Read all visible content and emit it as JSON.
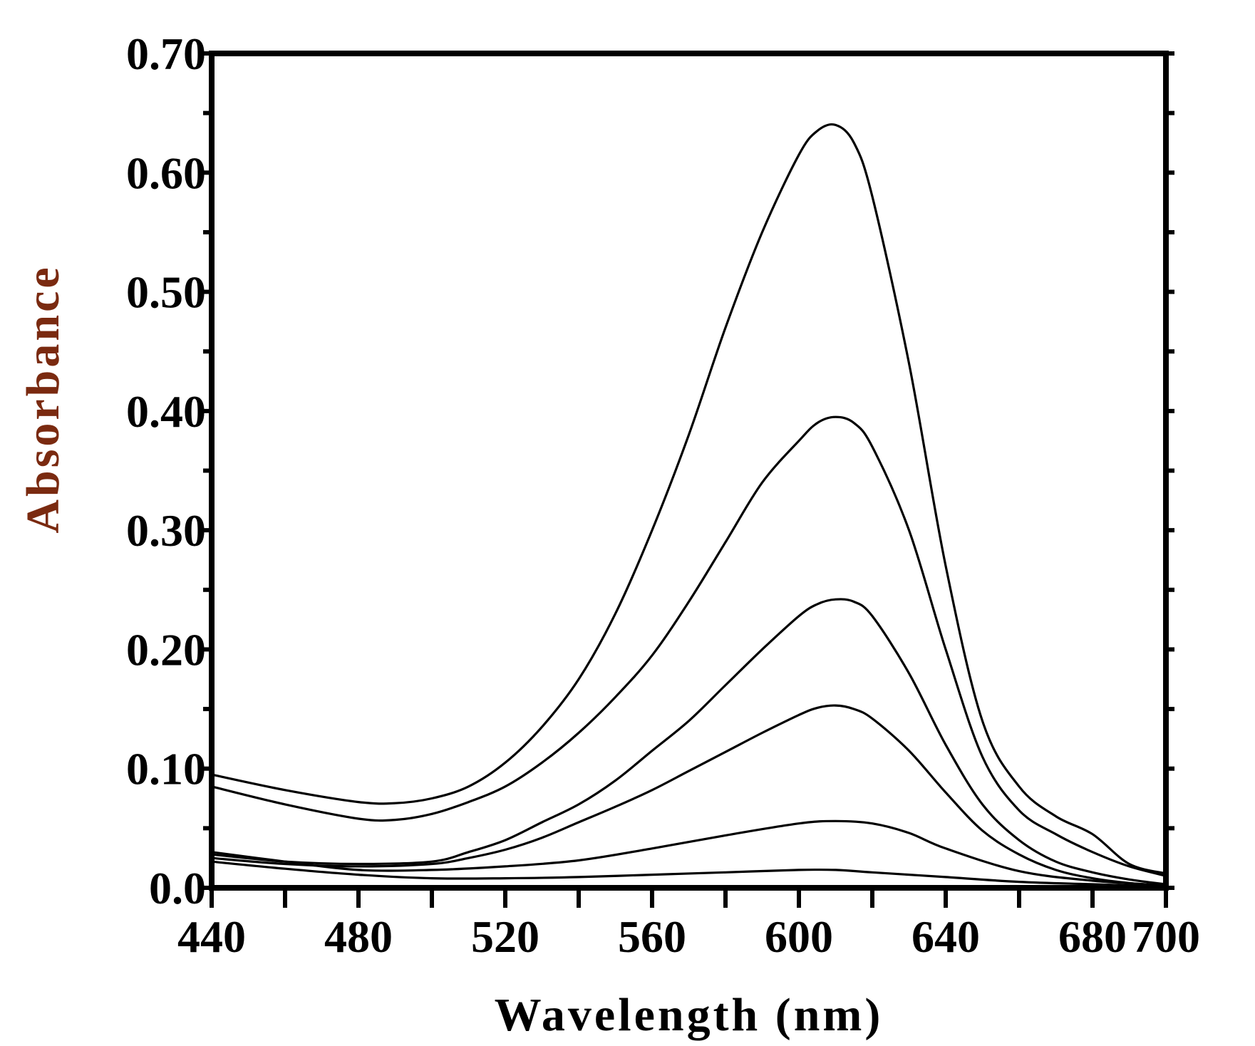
{
  "chart_data": {
    "type": "line",
    "title": "",
    "xlabel": "Wavelength (nm)",
    "ylabel": "Absorbance",
    "xlim": [
      440,
      700
    ],
    "ylim": [
      0,
      0.7
    ],
    "xticks": [
      {
        "value": 440,
        "label": "440"
      },
      {
        "value": 480,
        "label": "480"
      },
      {
        "value": 520,
        "label": "520"
      },
      {
        "value": 560,
        "label": "560"
      },
      {
        "value": 600,
        "label": "600"
      },
      {
        "value": 640,
        "label": "640"
      },
      {
        "value": 680,
        "label": "680"
      },
      {
        "value": 700,
        "label": "700"
      }
    ],
    "yticks": [
      {
        "value": 0.0,
        "label": "0.0"
      },
      {
        "value": 0.1,
        "label": "0.10"
      },
      {
        "value": 0.2,
        "label": "0.20"
      },
      {
        "value": 0.3,
        "label": "0.30"
      },
      {
        "value": 0.4,
        "label": "0.40"
      },
      {
        "value": 0.5,
        "label": "0.50"
      },
      {
        "value": 0.6,
        "label": "0.60"
      },
      {
        "value": 0.7,
        "label": "0.70"
      }
    ],
    "x_minor_step": 20,
    "y_minor_step": 0.05,
    "grid": false,
    "legend": "none",
    "colors": {
      "line": "#000000",
      "axes": "#000000",
      "ylabel": "#7a2a10",
      "xlabel": "#000000"
    },
    "series": [
      {
        "x": [
          440,
          460,
          480,
          490,
          500,
          510,
          520,
          530,
          540,
          550,
          560,
          570,
          580,
          590,
          600,
          605,
          610,
          615,
          620,
          630,
          640,
          650,
          660,
          670,
          680,
          690,
          700
        ],
        "y": [
          0.095,
          0.082,
          0.072,
          0.071,
          0.075,
          0.085,
          0.105,
          0.135,
          0.175,
          0.23,
          0.3,
          0.38,
          0.47,
          0.55,
          0.615,
          0.635,
          0.64,
          0.625,
          0.58,
          0.44,
          0.27,
          0.14,
          0.085,
          0.06,
          0.045,
          0.02,
          0.012
        ]
      },
      {
        "x": [
          440,
          460,
          480,
          490,
          500,
          510,
          520,
          530,
          540,
          550,
          560,
          570,
          580,
          590,
          600,
          605,
          610,
          615,
          620,
          630,
          640,
          650,
          660,
          670,
          680,
          690,
          700
        ],
        "y": [
          0.085,
          0.07,
          0.058,
          0.057,
          0.062,
          0.072,
          0.085,
          0.105,
          0.13,
          0.16,
          0.195,
          0.24,
          0.29,
          0.34,
          0.375,
          0.39,
          0.395,
          0.39,
          0.37,
          0.3,
          0.2,
          0.11,
          0.065,
          0.045,
          0.03,
          0.018,
          0.01
        ]
      },
      {
        "x": [
          440,
          460,
          480,
          500,
          510,
          520,
          530,
          540,
          550,
          560,
          570,
          580,
          590,
          600,
          605,
          610,
          615,
          620,
          630,
          640,
          650,
          660,
          670,
          680,
          690,
          700
        ],
        "y": [
          0.028,
          0.022,
          0.02,
          0.022,
          0.03,
          0.04,
          0.055,
          0.07,
          0.09,
          0.115,
          0.14,
          0.17,
          0.2,
          0.228,
          0.238,
          0.242,
          0.24,
          0.228,
          0.18,
          0.12,
          0.07,
          0.04,
          0.022,
          0.013,
          0.007,
          0.003
        ]
      },
      {
        "x": [
          440,
          460,
          480,
          500,
          510,
          520,
          530,
          540,
          550,
          560,
          570,
          580,
          590,
          600,
          605,
          610,
          615,
          620,
          630,
          640,
          650,
          660,
          670,
          680,
          690,
          700
        ],
        "y": [
          0.025,
          0.02,
          0.018,
          0.02,
          0.025,
          0.032,
          0.042,
          0.055,
          0.068,
          0.082,
          0.098,
          0.114,
          0.13,
          0.145,
          0.151,
          0.153,
          0.15,
          0.142,
          0.115,
          0.08,
          0.048,
          0.028,
          0.015,
          0.008,
          0.004,
          0.002
        ]
      },
      {
        "x": [
          440,
          460,
          480,
          500,
          520,
          540,
          560,
          580,
          600,
          610,
          620,
          630,
          640,
          660,
          680,
          700
        ],
        "y": [
          0.03,
          0.022,
          0.015,
          0.015,
          0.018,
          0.023,
          0.033,
          0.044,
          0.054,
          0.056,
          0.054,
          0.046,
          0.033,
          0.014,
          0.006,
          0.002
        ]
      },
      {
        "x": [
          440,
          460,
          480,
          500,
          520,
          540,
          560,
          580,
          600,
          610,
          620,
          640,
          660,
          680,
          700
        ],
        "y": [
          0.022,
          0.016,
          0.011,
          0.008,
          0.008,
          0.009,
          0.011,
          0.013,
          0.015,
          0.015,
          0.013,
          0.009,
          0.005,
          0.003,
          0.001
        ]
      }
    ]
  }
}
